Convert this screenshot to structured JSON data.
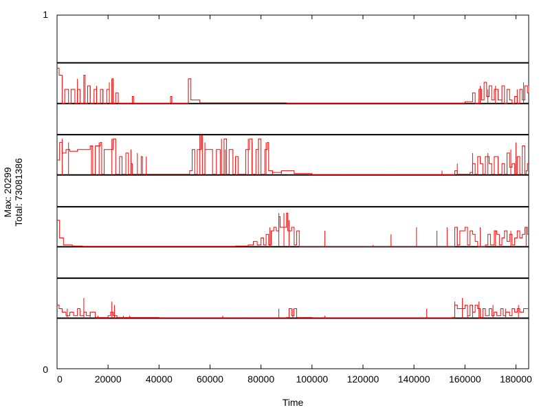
{
  "chart_data": {
    "type": "line",
    "xlabel": "Time",
    "ylabel_lines": [
      "Max: 20299",
      "Total: 73081386"
    ],
    "y_tick_top": "1",
    "y_tick_bottom": "0",
    "xlim": [
      0,
      185000
    ],
    "ylim": [
      0,
      1
    ],
    "x_ticks": [
      0,
      20000,
      40000,
      60000,
      80000,
      100000,
      120000,
      140000,
      160000,
      180000
    ],
    "x_tick_labels": [
      "0",
      "20000",
      "40000",
      "60000",
      "80000",
      "100000",
      "120000",
      "140000",
      "160000",
      "180000"
    ],
    "grid": false,
    "bands": [
      {
        "top": 0.865,
        "baseline": 0.75,
        "points": [
          [
            0,
            0.85
          ],
          [
            800,
            0.83
          ],
          [
            2000,
            0.75
          ],
          [
            3000,
            0.79
          ],
          [
            4500,
            0.75
          ],
          [
            5500,
            0.79
          ],
          [
            7000,
            0.75
          ],
          [
            8000,
            0.79
          ],
          [
            9000,
            0.75
          ],
          [
            10500,
            0.83
          ],
          [
            11000,
            0.75
          ],
          [
            12000,
            0.8
          ],
          [
            13000,
            0.75
          ],
          [
            14500,
            0.79
          ],
          [
            15500,
            0.75
          ],
          [
            17000,
            0.79
          ],
          [
            18000,
            0.75
          ],
          [
            19500,
            0.79
          ],
          [
            20500,
            0.75
          ],
          [
            21500,
            0.82
          ],
          [
            22000,
            0.75
          ],
          [
            23000,
            0.78
          ],
          [
            24000,
            0.75
          ],
          [
            29500,
            0.77
          ],
          [
            30000,
            0.75
          ],
          [
            44500,
            0.77
          ],
          [
            45000,
            0.75
          ],
          [
            51500,
            0.82
          ],
          [
            52500,
            0.76
          ],
          [
            56000,
            0.752
          ],
          [
            70000,
            0.752
          ],
          [
            90000,
            0.751
          ],
          [
            120000,
            0.751
          ],
          [
            150000,
            0.751
          ],
          [
            160000,
            0.755
          ],
          [
            163000,
            0.78
          ],
          [
            164000,
            0.75
          ],
          [
            165500,
            0.79
          ],
          [
            166500,
            0.76
          ],
          [
            167500,
            0.81
          ],
          [
            168500,
            0.77
          ],
          [
            169500,
            0.8
          ],
          [
            170500,
            0.76
          ],
          [
            171500,
            0.79
          ],
          [
            173000,
            0.76
          ],
          [
            174500,
            0.8
          ],
          [
            175500,
            0.75
          ],
          [
            176500,
            0.79
          ],
          [
            177500,
            0.76
          ],
          [
            178500,
            0.75
          ],
          [
            179500,
            0.77
          ],
          [
            180500,
            0.75
          ],
          [
            181500,
            0.79
          ],
          [
            182500,
            0.76
          ],
          [
            183500,
            0.8
          ],
          [
            184500,
            0.78
          ],
          [
            185000,
            0.8
          ]
        ]
      },
      {
        "top": 0.662,
        "baseline": 0.548,
        "points": [
          [
            0,
            0.59
          ],
          [
            1000,
            0.64
          ],
          [
            2000,
            0.61
          ],
          [
            3500,
            0.62
          ],
          [
            5000,
            0.615
          ],
          [
            8000,
            0.62
          ],
          [
            11000,
            0.62
          ],
          [
            13000,
            0.63
          ],
          [
            14000,
            0.55
          ],
          [
            15000,
            0.63
          ],
          [
            17000,
            0.64
          ],
          [
            17500,
            0.55
          ],
          [
            18500,
            0.62
          ],
          [
            21000,
            0.62
          ],
          [
            22000,
            0.65
          ],
          [
            23000,
            0.55
          ],
          [
            24500,
            0.6
          ],
          [
            25500,
            0.55
          ],
          [
            27000,
            0.61
          ],
          [
            28000,
            0.55
          ],
          [
            29000,
            0.58
          ],
          [
            29500,
            0.55
          ],
          [
            32000,
            0.55
          ],
          [
            33000,
            0.6
          ],
          [
            33500,
            0.55
          ],
          [
            52000,
            0.56
          ],
          [
            53000,
            0.62
          ],
          [
            54000,
            0.55
          ],
          [
            55000,
            0.62
          ],
          [
            56500,
            0.66
          ],
          [
            57000,
            0.55
          ],
          [
            58000,
            0.62
          ],
          [
            60000,
            0.62
          ],
          [
            61000,
            0.55
          ],
          [
            62500,
            0.62
          ],
          [
            64000,
            0.55
          ],
          [
            65500,
            0.65
          ],
          [
            66500,
            0.55
          ],
          [
            67500,
            0.62
          ],
          [
            69000,
            0.55
          ],
          [
            70000,
            0.6
          ],
          [
            71000,
            0.55
          ],
          [
            73500,
            0.55
          ],
          [
            74000,
            0.62
          ],
          [
            75500,
            0.65
          ],
          [
            76500,
            0.55
          ],
          [
            78000,
            0.62
          ],
          [
            79000,
            0.65
          ],
          [
            80000,
            0.55
          ],
          [
            81500,
            0.62
          ],
          [
            82500,
            0.64
          ],
          [
            83000,
            0.56
          ],
          [
            84500,
            0.555
          ],
          [
            88000,
            0.56
          ],
          [
            93000,
            0.552
          ],
          [
            100000,
            0.549
          ],
          [
            150000,
            0.549
          ],
          [
            156000,
            0.56
          ],
          [
            157000,
            0.55
          ],
          [
            162000,
            0.555
          ],
          [
            163000,
            0.58
          ],
          [
            164000,
            0.55
          ],
          [
            165000,
            0.6
          ],
          [
            166000,
            0.58
          ],
          [
            167000,
            0.55
          ],
          [
            168000,
            0.6
          ],
          [
            169500,
            0.58
          ],
          [
            170500,
            0.55
          ],
          [
            171500,
            0.6
          ],
          [
            173000,
            0.55
          ],
          [
            174500,
            0.58
          ],
          [
            175500,
            0.55
          ],
          [
            176500,
            0.61
          ],
          [
            177500,
            0.57
          ],
          [
            178500,
            0.58
          ],
          [
            179500,
            0.55
          ],
          [
            180500,
            0.6
          ],
          [
            181500,
            0.55
          ],
          [
            182500,
            0.63
          ],
          [
            183500,
            0.55
          ],
          [
            184000,
            0.56
          ],
          [
            184500,
            0.58
          ],
          [
            185000,
            0.58
          ]
        ]
      },
      {
        "top": 0.458,
        "baseline": 0.345,
        "points": [
          [
            0,
            0.42
          ],
          [
            1000,
            0.37
          ],
          [
            2500,
            0.35
          ],
          [
            6000,
            0.347
          ],
          [
            10000,
            0.346
          ],
          [
            20000,
            0.346
          ],
          [
            40000,
            0.346
          ],
          [
            60000,
            0.346
          ],
          [
            70000,
            0.347
          ],
          [
            75000,
            0.35
          ],
          [
            77000,
            0.36
          ],
          [
            78500,
            0.35
          ],
          [
            80000,
            0.37
          ],
          [
            81000,
            0.35
          ],
          [
            82000,
            0.38
          ],
          [
            83000,
            0.35
          ],
          [
            84000,
            0.39
          ],
          [
            85000,
            0.4
          ],
          [
            86000,
            0.39
          ],
          [
            87000,
            0.43
          ],
          [
            87500,
            0.4
          ],
          [
            89000,
            0.4
          ],
          [
            90000,
            0.44
          ],
          [
            90500,
            0.39
          ],
          [
            92000,
            0.4
          ],
          [
            93000,
            0.35
          ],
          [
            94000,
            0.39
          ],
          [
            95000,
            0.345
          ],
          [
            105000,
            0.345
          ],
          [
            125000,
            0.345
          ],
          [
            140000,
            0.345
          ],
          [
            155000,
            0.345
          ],
          [
            156000,
            0.4
          ],
          [
            157000,
            0.35
          ],
          [
            158000,
            0.39
          ],
          [
            160000,
            0.4
          ],
          [
            161000,
            0.35
          ],
          [
            162000,
            0.39
          ],
          [
            163000,
            0.38
          ],
          [
            164000,
            0.36
          ],
          [
            165000,
            0.345
          ],
          [
            168000,
            0.35
          ],
          [
            169000,
            0.38
          ],
          [
            170000,
            0.35
          ],
          [
            171500,
            0.39
          ],
          [
            172500,
            0.38
          ],
          [
            173500,
            0.35
          ],
          [
            174500,
            0.37
          ],
          [
            175500,
            0.39
          ],
          [
            176500,
            0.36
          ],
          [
            177500,
            0.38
          ],
          [
            178500,
            0.35
          ],
          [
            179500,
            0.37
          ],
          [
            180500,
            0.39
          ],
          [
            181500,
            0.37
          ],
          [
            182500,
            0.38
          ],
          [
            183500,
            0.4
          ],
          [
            184500,
            0.38
          ],
          [
            185000,
            0.38
          ]
        ]
      },
      {
        "top": 0.256,
        "baseline": 0.143,
        "points": [
          [
            0,
            0.18
          ],
          [
            800,
            0.17
          ],
          [
            2000,
            0.16
          ],
          [
            3500,
            0.15
          ],
          [
            5000,
            0.16
          ],
          [
            6500,
            0.15
          ],
          [
            8000,
            0.17
          ],
          [
            9000,
            0.15
          ],
          [
            10500,
            0.16
          ],
          [
            11500,
            0.15
          ],
          [
            13000,
            0.16
          ],
          [
            15000,
            0.145
          ],
          [
            18000,
            0.145
          ],
          [
            20000,
            0.15
          ],
          [
            21000,
            0.16
          ],
          [
            22000,
            0.15
          ],
          [
            23500,
            0.145
          ],
          [
            30000,
            0.145
          ],
          [
            40000,
            0.144
          ],
          [
            60000,
            0.144
          ],
          [
            80000,
            0.144
          ],
          [
            90000,
            0.145
          ],
          [
            91000,
            0.17
          ],
          [
            92000,
            0.15
          ],
          [
            93000,
            0.17
          ],
          [
            94000,
            0.145
          ],
          [
            100000,
            0.144
          ],
          [
            150000,
            0.144
          ],
          [
            155000,
            0.145
          ],
          [
            156000,
            0.18
          ],
          [
            157000,
            0.17
          ],
          [
            160000,
            0.18
          ],
          [
            161000,
            0.15
          ],
          [
            162000,
            0.18
          ],
          [
            163000,
            0.16
          ],
          [
            164000,
            0.18
          ],
          [
            165000,
            0.17
          ],
          [
            166000,
            0.145
          ],
          [
            167000,
            0.17
          ],
          [
            168000,
            0.15
          ],
          [
            169500,
            0.17
          ],
          [
            170500,
            0.15
          ],
          [
            171500,
            0.16
          ],
          [
            172500,
            0.15
          ],
          [
            174000,
            0.17
          ],
          [
            175000,
            0.15
          ],
          [
            176000,
            0.16
          ],
          [
            177500,
            0.15
          ],
          [
            178500,
            0.17
          ],
          [
            179500,
            0.16
          ],
          [
            180500,
            0.17
          ],
          [
            181500,
            0.16
          ],
          [
            183000,
            0.17
          ],
          [
            184500,
            0.17
          ],
          [
            185000,
            0.17
          ]
        ]
      }
    ],
    "spikes": [
      {
        "band": 0,
        "x": [
          8000,
          10500,
          13000,
          15500,
          18000,
          20500,
          21500,
          45000,
          51500,
          166000,
          169000,
          172000,
          174500,
          180500,
          183000
        ],
        "y": [
          0.82,
          0.83,
          0.8,
          0.8,
          0.79,
          0.81,
          0.82,
          0.77,
          0.82,
          0.8,
          0.79,
          0.8,
          0.8,
          0.79,
          0.81
        ]
      },
      {
        "band": 1,
        "x": [
          2000,
          4500,
          13500,
          16500,
          21500,
          29000,
          31500,
          35000,
          56000,
          58000,
          64500,
          66000,
          75000,
          76500,
          79000,
          82000,
          84500,
          88000,
          91000,
          99000,
          112000,
          132000,
          151000,
          157000,
          163000,
          169000,
          178000,
          180000
        ],
        "y": [
          0.65,
          0.64,
          0.63,
          0.64,
          0.65,
          0.62,
          0.61,
          0.6,
          0.66,
          0.64,
          0.65,
          0.62,
          0.65,
          0.64,
          0.65,
          0.64,
          0.56,
          0.56,
          0.55,
          0.55,
          0.55,
          0.55,
          0.56,
          0.58,
          0.61,
          0.61,
          0.62,
          0.64
        ]
      },
      {
        "band": 2,
        "x": [
          83500,
          87000,
          89000,
          91000,
          105000,
          124000,
          131000,
          141000,
          149000,
          153000,
          157000,
          166000,
          172000,
          178000,
          184000
        ],
        "y": [
          0.4,
          0.44,
          0.44,
          0.42,
          0.39,
          0.35,
          0.38,
          0.4,
          0.39,
          0.4,
          0.4,
          0.4,
          0.39,
          0.39,
          0.4
        ]
      },
      {
        "band": 3,
        "x": [
          4000,
          10500,
          13000,
          16000,
          21500,
          22500,
          26000,
          28500,
          41000,
          65000,
          74000,
          87000,
          92500,
          105000,
          145000,
          156000,
          159000,
          161000,
          163000,
          165500,
          171000,
          176000,
          181000
        ],
        "y": [
          0.17,
          0.2,
          0.16,
          0.15,
          0.19,
          0.18,
          0.15,
          0.15,
          0.145,
          0.15,
          0.145,
          0.17,
          0.17,
          0.15,
          0.17,
          0.19,
          0.2,
          0.18,
          0.18,
          0.19,
          0.18,
          0.17,
          0.18
        ]
      }
    ]
  }
}
